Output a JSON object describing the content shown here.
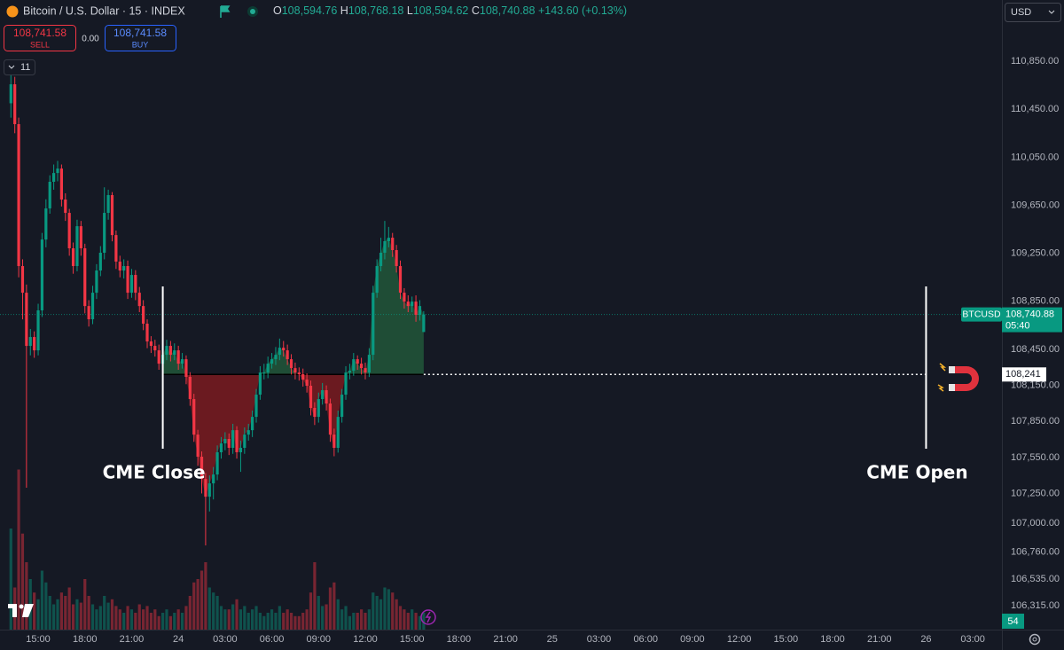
{
  "header": {
    "symbol": "Bitcoin / U.S. Dollar · 15 · INDEX",
    "ohlc": [
      {
        "key": "O",
        "value": "108,594.76"
      },
      {
        "key": "H",
        "value": "108,768.18"
      },
      {
        "key": "L",
        "value": "108,594.62"
      },
      {
        "key": "C",
        "value": "108,740.88"
      }
    ],
    "change": "+143.60 (+0.13%)",
    "sell": {
      "price": "108,741.58",
      "label": "SELL"
    },
    "spread": "0.00",
    "buy": {
      "price": "108,741.58",
      "label": "BUY"
    },
    "indicators_count": "11",
    "currency": "USD",
    "alerts_badge": "54"
  },
  "chart_data": {
    "type": "candlestick",
    "x": [
      13.25,
      13.5,
      13.75,
      14,
      14.25,
      14.5,
      14.75,
      15,
      15.25,
      15.5,
      15.75,
      16,
      16.25,
      16.5,
      16.75,
      17,
      17.25,
      17.5,
      17.75,
      18,
      18.25,
      18.5,
      18.75,
      19,
      19.25,
      19.5,
      19.75,
      20,
      20.25,
      20.5,
      20.75,
      21,
      21.25,
      21.5,
      21.75,
      22,
      22.25,
      22.5,
      22.75,
      23,
      23.25,
      23.5,
      23.75,
      24,
      24.25,
      24.5,
      24.75,
      25,
      25.25,
      25.5,
      25.75,
      26,
      26.25,
      26.5,
      26.75,
      27,
      27.25,
      27.5,
      27.75,
      28,
      28.25,
      28.5,
      28.75,
      29,
      29.25,
      29.5,
      29.75,
      30,
      30.25,
      30.5,
      30.75,
      31,
      31.25,
      31.5,
      31.75,
      32,
      32.25,
      32.5,
      32.75,
      33,
      33.25,
      33.5,
      33.75,
      34,
      34.25,
      34.5,
      34.75,
      35,
      35.25,
      35.5,
      35.75,
      36,
      36.25,
      36.5,
      36.75,
      37,
      37.25,
      37.5,
      37.75,
      38,
      38.25,
      38.5,
      38.75,
      39,
      39.25,
      39.5,
      39.75
    ],
    "open": [
      110500,
      110658,
      110326,
      109144,
      108922,
      108479,
      108553,
      108442,
      108775,
      109365,
      109624,
      109846,
      109919,
      109956,
      109698,
      109587,
      109292,
      109144,
      109476,
      109292,
      108811,
      108701,
      108922,
      109107,
      109255,
      109587,
      109735,
      109402,
      109181,
      109107,
      109144,
      108922,
      109070,
      108922,
      108811,
      108664,
      108516,
      108479,
      108442,
      108331,
      108405,
      108479,
      108405,
      108442,
      108331,
      108368,
      108221,
      108036,
      107740,
      107556,
      107371,
      107223,
      107334,
      107408,
      107593,
      107667,
      107704,
      107630,
      107777,
      107593,
      107630,
      107740,
      107777,
      107888,
      108073,
      108257,
      108257,
      108331,
      108368,
      108405,
      108464,
      108442,
      108368,
      108294,
      108257,
      108243,
      108198,
      108147,
      107962,
      107888,
      108036,
      108110,
      107999,
      107740,
      107630,
      107888,
      108073,
      108257,
      108272,
      108368,
      108331,
      108294,
      108257,
      108405,
      108922,
      109144,
      109255,
      109351,
      109380,
      109277,
      109144,
      108922,
      108848,
      108811,
      108848,
      108738,
      108594.76
    ],
    "high": [
      110805,
      110720,
      110380,
      109200,
      108990,
      108620,
      108600,
      108830,
      109420,
      109700,
      109900,
      109990,
      110020,
      109990,
      109750,
      109620,
      109340,
      109530,
      109520,
      109330,
      108860,
      108980,
      109160,
      109310,
      109800,
      109780,
      109760,
      109440,
      109230,
      109200,
      109190,
      109120,
      109110,
      108970,
      108860,
      108700,
      108560,
      108530,
      108490,
      108460,
      108530,
      108520,
      108500,
      108480,
      108420,
      108400,
      108260,
      108080,
      107780,
      107600,
      107420,
      107400,
      107470,
      107650,
      107720,
      107760,
      107750,
      107830,
      107810,
      107690,
      107800,
      107830,
      107940,
      108120,
      108310,
      108330,
      108390,
      108420,
      108470,
      108540,
      108520,
      108490,
      108410,
      108340,
      108300,
      108290,
      108250,
      108190,
      108010,
      108090,
      108170,
      108150,
      108040,
      107790,
      107940,
      108120,
      108310,
      108330,
      108420,
      108400,
      108380,
      108340,
      108460,
      108980,
      109200,
      109380,
      109520,
      109470,
      109420,
      109320,
      109190,
      108960,
      108900,
      108890,
      108900,
      108860,
      108768.18
    ],
    "low": [
      110380,
      110250,
      109050,
      108700,
      107298,
      108400,
      108380,
      108400,
      108720,
      109300,
      109580,
      109780,
      109850,
      109640,
      109520,
      109230,
      109080,
      109100,
      109230,
      108750,
      108640,
      108660,
      108870,
      109060,
      109200,
      109530,
      109350,
      109120,
      109050,
      109040,
      108870,
      108880,
      108860,
      108760,
      108610,
      108460,
      108420,
      108390,
      108280,
      108290,
      108360,
      108350,
      108360,
      108280,
      108290,
      108160,
      107980,
      107680,
      107480,
      107250,
      106817,
      107100,
      107200,
      107360,
      107540,
      107610,
      107570,
      107580,
      107540,
      107430,
      107580,
      107690,
      107720,
      107840,
      108030,
      108200,
      108210,
      108290,
      108320,
      108360,
      108390,
      108320,
      108240,
      108200,
      108190,
      108140,
      108090,
      107900,
      107820,
      107840,
      107990,
      107940,
      107680,
      107560,
      107590,
      107840,
      108030,
      108200,
      108230,
      108280,
      108240,
      108200,
      108220,
      108360,
      108880,
      109100,
      109200,
      109300,
      109220,
      109090,
      108870,
      108790,
      108760,
      108760,
      108680,
      108690,
      108594.62
    ],
    "close": [
      110658,
      110326,
      109144,
      108922,
      108479,
      108553,
      108442,
      108775,
      109365,
      109624,
      109846,
      109919,
      109956,
      109698,
      109587,
      109292,
      109144,
      109476,
      109292,
      108811,
      108701,
      108922,
      109107,
      109255,
      109587,
      109735,
      109402,
      109181,
      109107,
      109144,
      108922,
      109070,
      108922,
      108811,
      108664,
      108516,
      108479,
      108442,
      108331,
      108405,
      108479,
      108405,
      108442,
      108331,
      108368,
      108221,
      108036,
      107740,
      107556,
      107371,
      107223,
      107334,
      107408,
      107593,
      107667,
      107704,
      107630,
      107777,
      107593,
      107630,
      107740,
      107777,
      107888,
      108073,
      108257,
      108257,
      108331,
      108368,
      108405,
      108464,
      108442,
      108368,
      108294,
      108257,
      108243,
      108198,
      108147,
      107962,
      107888,
      108036,
      108110,
      107999,
      107740,
      107630,
      107888,
      108073,
      108257,
      108272,
      108368,
      108331,
      108294,
      108257,
      108405,
      108922,
      109144,
      109255,
      109351,
      109380,
      109277,
      109144,
      108922,
      108848,
      108811,
      108848,
      108738,
      108811,
      108740.88
    ],
    "volume": [
      60,
      25,
      95,
      57,
      40,
      30,
      22,
      18,
      35,
      28,
      20,
      15,
      18,
      22,
      20,
      25,
      15,
      18,
      16,
      30,
      20,
      15,
      12,
      14,
      20,
      16,
      18,
      14,
      12,
      10,
      14,
      12,
      10,
      15,
      12,
      14,
      10,
      12,
      8,
      10,
      12,
      8,
      10,
      12,
      10,
      14,
      20,
      28,
      30,
      35,
      40,
      25,
      22,
      20,
      14,
      12,
      12,
      15,
      18,
      12,
      14,
      10,
      12,
      14,
      10,
      8,
      10,
      12,
      10,
      14,
      10,
      12,
      10,
      8,
      8,
      10,
      12,
      22,
      40,
      20,
      14,
      15,
      25,
      28,
      18,
      12,
      14,
      8,
      10,
      10,
      12,
      10,
      12,
      22,
      20,
      18,
      25,
      24,
      22,
      18,
      14,
      12,
      10,
      12,
      10,
      8,
      10
    ],
    "vlim": [
      0,
      100
    ],
    "up_color": "#089981",
    "down_color": "#f23645",
    "gap_colors": {
      "above": "#1f4d36",
      "below": "#6b1a20"
    },
    "xlim": [
      12.55,
      76.87
    ],
    "xticks": [
      {
        "value": 15,
        "label": "15:00"
      },
      {
        "value": 18,
        "label": "18:00"
      },
      {
        "value": 21,
        "label": "21:00"
      },
      24,
      {
        "value": 27,
        "label": "03:00"
      },
      {
        "value": 30,
        "label": "06:00"
      },
      {
        "value": 33,
        "label": "09:00"
      },
      {
        "value": 36,
        "label": "12:00"
      },
      {
        "value": 39,
        "label": "15:00"
      },
      {
        "value": 42,
        "label": "18:00"
      },
      {
        "value": 45,
        "label": "21:00"
      },
      {
        "value": 48,
        "label": "25"
      },
      {
        "value": 51,
        "label": "03:00"
      },
      {
        "value": 54,
        "label": "06:00"
      },
      {
        "value": 57,
        "label": "09:00"
      },
      {
        "value": 60,
        "label": "12:00"
      },
      {
        "value": 63,
        "label": "15:00"
      },
      {
        "value": 66,
        "label": "18:00"
      },
      {
        "value": 69,
        "label": "21:00"
      },
      {
        "value": 72,
        "label": "26"
      },
      {
        "value": 75,
        "label": "03:00"
      }
    ],
    "ylim": [
      106116,
      111360
    ],
    "yticks": [
      {
        "value": 110850,
        "label": "110,850.00"
      },
      {
        "value": 110450,
        "label": "110,450.00"
      },
      {
        "value": 110050,
        "label": "110,050.00"
      },
      {
        "value": 109650,
        "label": "109,650.00"
      },
      {
        "value": 109250,
        "label": "109,250.00"
      },
      {
        "value": 108850,
        "label": "108,850.00"
      },
      {
        "value": 108450,
        "label": "108,450.00"
      },
      {
        "value": 108150,
        "label": "108,150.00"
      },
      {
        "value": 107850,
        "label": "107,850.00"
      },
      {
        "value": 107550,
        "label": "107,550.00"
      },
      {
        "value": 107250,
        "label": "107,250.00"
      },
      {
        "value": 107000,
        "label": "107,000.00"
      },
      {
        "value": 106760,
        "label": "106,760.00"
      },
      {
        "value": 106535,
        "label": "106,535.00"
      },
      {
        "value": 106315,
        "label": "106,315.00"
      }
    ],
    "grid": false,
    "last_price": {
      "value": 108740.88,
      "label": "108,740.88",
      "symbol": "BTCUSD",
      "countdown": "05:40"
    },
    "gap": {
      "value": 108241,
      "label": "108,241"
    },
    "annotations": [
      {
        "x": 23,
        "text": "CME Close"
      },
      {
        "x": 72,
        "text": "CME Open"
      }
    ]
  }
}
